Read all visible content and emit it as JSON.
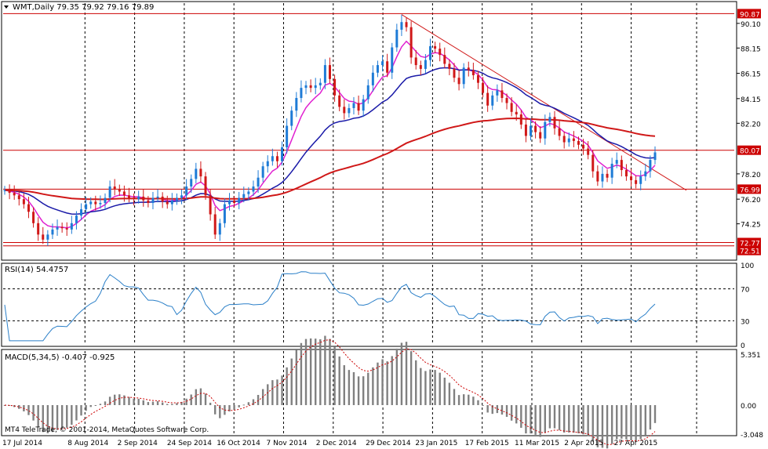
{
  "main": {
    "header": "WMT,Daily  79.35 79.92 79.16 79.89",
    "y_ticks": [
      "90.10",
      "88.15",
      "86.15",
      "84.15",
      "82.20",
      "78.20",
      "76.20",
      "74.25"
    ],
    "level_badges": [
      {
        "label": "90.87",
        "value": 90.87,
        "color": "#cc0000"
      },
      {
        "label": "80.07",
        "value": 80.07,
        "color": "#cc0000"
      },
      {
        "label": "76.99",
        "value": 76.99,
        "color": "#cc0000"
      },
      {
        "label": "72.77",
        "value": 72.77,
        "color": "#cc0000"
      },
      {
        "label": "72.51",
        "value": 72.51,
        "color": "#cc0000"
      }
    ]
  },
  "rsi": {
    "header": "RSI(14) 54.4757",
    "ticks": [
      "100",
      "70",
      "30",
      "0"
    ]
  },
  "macd": {
    "header": "MACD(5,34,5) -0.407 -0.925",
    "ticks": [
      "5.351",
      "0.00",
      "-3.048"
    ]
  },
  "watermark": "MT4 TeleTrade, © 2001-2014, MetaQuotes Software Corp.",
  "x_labels": [
    "17 Jul 2014",
    "8 Aug 2014",
    "2 Sep 2014",
    "24 Sep 2014",
    "16 Oct 2014",
    "7 Nov 2014",
    "2 Dec 2014",
    "29 Dec 2014",
    "23 Jan 2015",
    "17 Feb 2015",
    "11 Mar 2015",
    "2 Apr 2015",
    "27 Apr 2015"
  ],
  "colors": {
    "bull": "#1e7bd6",
    "bear": "#d01818",
    "ma_fast": "#e020d0",
    "ma_mid": "#1a1aa8",
    "ma_slow": "#d01818",
    "level": "#cc0000",
    "rsi": "#2a7fc8",
    "macd_bar": "#808080",
    "macd_sig": "#cc0000"
  },
  "chart_data": {
    "type": "candlestick",
    "symbol": "WMT",
    "timeframe": "Daily",
    "last_ohlc": {
      "open": 79.35,
      "high": 79.92,
      "low": 79.16,
      "close": 79.89
    },
    "ylim": [
      71.5,
      91.7
    ],
    "levels": [
      90.87,
      80.07,
      76.99,
      72.77,
      72.51
    ],
    "close_series": [
      76.9,
      76.7,
      76.5,
      76.2,
      75.8,
      75.2,
      74.3,
      73.4,
      73.0,
      73.4,
      73.8,
      74.0,
      73.9,
      73.8,
      74.3,
      74.9,
      75.4,
      75.8,
      76.0,
      75.8,
      75.9,
      76.3,
      77.2,
      77.0,
      76.8,
      76.5,
      76.3,
      76.2,
      76.4,
      76.1,
      75.9,
      76.3,
      76.4,
      76.0,
      75.8,
      76.1,
      76.3,
      76.5,
      77.2,
      77.8,
      78.6,
      78.0,
      76.5,
      75.0,
      73.4,
      74.3,
      75.8,
      76.1,
      75.9,
      76.3,
      76.6,
      76.8,
      77.2,
      77.9,
      78.8,
      79.2,
      79.6,
      79.2,
      80.3,
      82.0,
      83.2,
      84.2,
      85.0,
      85.2,
      85.0,
      85.2,
      85.4,
      86.8,
      85.7,
      84.4,
      83.5,
      83.0,
      83.4,
      83.8,
      83.2,
      84.1,
      85.2,
      86.2,
      86.8,
      87.1,
      86.2,
      88.2,
      89.6,
      90.2,
      89.8,
      87.4,
      86.8,
      86.5,
      87.2,
      88.3,
      88.1,
      87.6,
      86.9,
      86.5,
      85.8,
      85.3,
      86.6,
      86.4,
      86.0,
      85.4,
      84.6,
      83.6,
      84.4,
      84.8,
      84.2,
      83.8,
      83.1,
      82.9,
      82.1,
      81.2,
      82.0,
      81.5,
      81.0,
      82.3,
      82.7,
      81.8,
      81.2,
      80.7,
      81.0,
      80.8,
      80.5,
      80.2,
      79.7,
      78.4,
      77.6,
      78.2,
      77.9,
      79.0,
      79.3,
      78.5,
      78.0,
      77.7,
      77.4,
      78.0,
      78.4,
      79.3,
      79.9
    ],
    "moving_averages": [
      {
        "name": "fast",
        "color": "#e020d0"
      },
      {
        "name": "mid",
        "color": "#1a1aa8"
      },
      {
        "name": "slow",
        "color": "#d01818"
      }
    ],
    "trendline": {
      "from_close_index": 83,
      "from_value": 90.8,
      "to_value": 76.9
    },
    "rsi": {
      "period": 14,
      "value": 54.4757,
      "levels": [
        70,
        30
      ],
      "range": [
        0,
        100
      ]
    },
    "macd": {
      "params": [
        5,
        34,
        5
      ],
      "value": -0.407,
      "signal": -0.925,
      "range": [
        -3.048,
        5.351
      ]
    }
  }
}
